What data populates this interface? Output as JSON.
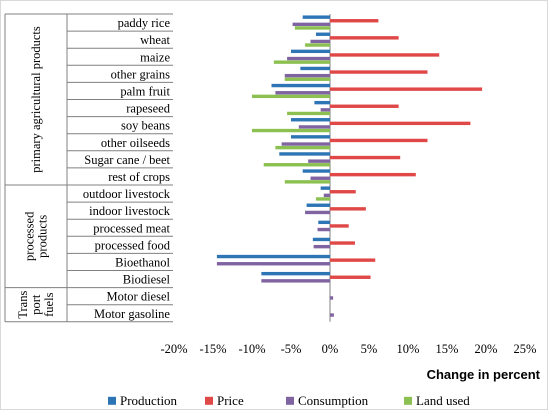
{
  "chart_data": {
    "type": "bar",
    "orientation": "horizontal",
    "xlabel": "Change in percent",
    "xlim": [
      -0.2,
      0.25
    ],
    "xticks": [
      "-20%",
      "-15%",
      "-10%",
      "-5%",
      "0%",
      "5%",
      "10%",
      "15%",
      "20%",
      "25%"
    ],
    "grid": false,
    "legend_position": "bottom",
    "groups": [
      {
        "label": "primary agricultural products",
        "lines": [
          "primary agricultural products"
        ],
        "categories": [
          "paddy rice",
          "wheat",
          "maize",
          "other grains",
          "palm fruit",
          "rapeseed",
          "soy beans",
          "other oilseeds",
          "Sugar cane / beet",
          "rest of crops"
        ]
      },
      {
        "label": "processed products",
        "lines": [
          "processed",
          "products"
        ],
        "categories": [
          "outdoor livestock",
          "indoor livestock",
          "processed meat",
          "processed food",
          "Bioethanol",
          "Biodiesel"
        ]
      },
      {
        "label": "Trans port fuels",
        "lines": [
          "Trans",
          "port",
          "fuels"
        ],
        "categories": [
          "Motor diesel",
          "Motor gasoline"
        ]
      }
    ],
    "categories": [
      "paddy rice",
      "wheat",
      "maize",
      "other grains",
      "palm fruit",
      "rapeseed",
      "soy beans",
      "other oilseeds",
      "Sugar cane / beet",
      "rest of crops",
      "outdoor livestock",
      "indoor livestock",
      "processed meat",
      "processed food",
      "Bioethanol",
      "Biodiesel",
      "Motor diesel",
      "Motor gasoline"
    ],
    "series": [
      {
        "name": "Production",
        "color": "#2e75b6",
        "values": [
          -0.035,
          -0.018,
          -0.05,
          -0.038,
          -0.075,
          -0.02,
          -0.05,
          -0.05,
          -0.065,
          -0.035,
          -0.012,
          -0.03,
          -0.015,
          -0.022,
          -0.145,
          -0.088,
          0.0,
          0.0
        ]
      },
      {
        "name": "Price",
        "color": "#e04848",
        "values": [
          0.062,
          0.088,
          0.14,
          0.125,
          0.195,
          0.088,
          0.18,
          0.125,
          0.09,
          0.11,
          0.033,
          0.046,
          0.024,
          0.032,
          0.058,
          0.052,
          0.0,
          0.0
        ]
      },
      {
        "name": "Consumption",
        "color": "#8064a2",
        "values": [
          -0.048,
          -0.025,
          -0.055,
          -0.058,
          -0.07,
          -0.012,
          -0.04,
          -0.062,
          -0.028,
          -0.025,
          -0.008,
          -0.032,
          -0.016,
          -0.021,
          -0.145,
          -0.088,
          0.004,
          0.005
        ]
      },
      {
        "name": "Land used",
        "color": "#8cc152",
        "values": [
          -0.045,
          -0.032,
          -0.072,
          -0.058,
          -0.1,
          -0.055,
          -0.1,
          -0.07,
          -0.085,
          -0.058,
          -0.018,
          0.0,
          0.0,
          0.0,
          0.0,
          0.0,
          0.0,
          0.0
        ]
      }
    ]
  }
}
